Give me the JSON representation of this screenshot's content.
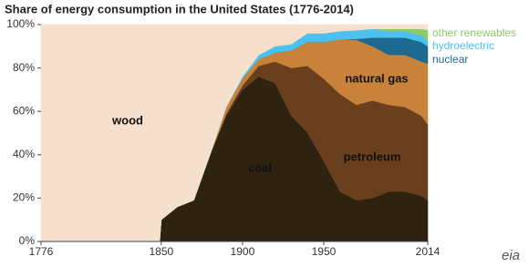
{
  "chart_data": {
    "type": "stacked_area",
    "title": "Share of energy consumption  in the United States (1776-2014)",
    "logo": "eia",
    "x": [
      1776,
      1849,
      1850,
      1860,
      1870,
      1880,
      1890,
      1900,
      1910,
      1920,
      1930,
      1940,
      1950,
      1960,
      1970,
      1980,
      1990,
      2000,
      2010,
      2014
    ],
    "series": [
      {
        "name": "coal",
        "color": "#2d2310",
        "values": [
          0,
          0,
          10,
          16,
          19,
          40,
          58,
          70,
          76,
          73,
          58,
          50,
          37,
          23,
          19,
          20,
          23,
          23,
          21,
          19
        ]
      },
      {
        "name": "petroleum",
        "color": "#6a3f1d",
        "values": [
          0,
          0,
          0,
          0,
          0,
          0,
          1,
          2,
          5,
          10,
          22,
          31,
          38,
          45,
          44,
          45,
          40,
          39,
          37,
          35
        ]
      },
      {
        "name": "natural gas",
        "color": "#c8823a",
        "values": [
          0,
          0,
          0,
          0,
          0,
          0,
          3,
          3,
          3,
          4,
          8,
          11,
          17,
          25,
          30,
          25,
          23,
          24,
          25,
          28
        ]
      },
      {
        "name": "nuclear",
        "color": "#1c6a92",
        "values": [
          0,
          0,
          0,
          0,
          0,
          0,
          0,
          0,
          0,
          0,
          0,
          0,
          0,
          0,
          0.4,
          4,
          8,
          8,
          9,
          8
        ]
      },
      {
        "name": "hydroelectric",
        "color": "#4cc0ee",
        "values": [
          0,
          0,
          0,
          0,
          0,
          0,
          0,
          1,
          2,
          3,
          3,
          4,
          4,
          4,
          4,
          4,
          3,
          3,
          3,
          2.5
        ]
      },
      {
        "name": "other renewables",
        "color": "#8ccb66",
        "values": [
          0,
          0,
          0,
          0,
          0,
          0,
          0,
          0,
          0,
          0,
          0,
          0,
          0,
          0,
          0,
          0,
          1,
          1,
          3,
          5
        ]
      },
      {
        "name": "wood",
        "color": "#f6e0cd",
        "values": [
          100,
          100,
          90,
          84,
          81,
          60,
          38,
          24,
          14,
          10,
          9,
          4,
          4,
          3,
          2.6,
          2,
          2,
          2,
          2,
          2.5
        ]
      }
    ],
    "xlim": [
      1776,
      2014
    ],
    "xticks": [
      1776,
      1850,
      1900,
      1950,
      2014
    ],
    "ylim": [
      0,
      100
    ],
    "yticks": [
      {
        "value": 0,
        "label": "0%"
      },
      {
        "value": 20,
        "label": "20%"
      },
      {
        "value": 40,
        "label": "40%"
      },
      {
        "value": 60,
        "label": "60%"
      },
      {
        "value": 80,
        "label": "80%"
      },
      {
        "value": 100,
        "label": "100%"
      }
    ]
  }
}
